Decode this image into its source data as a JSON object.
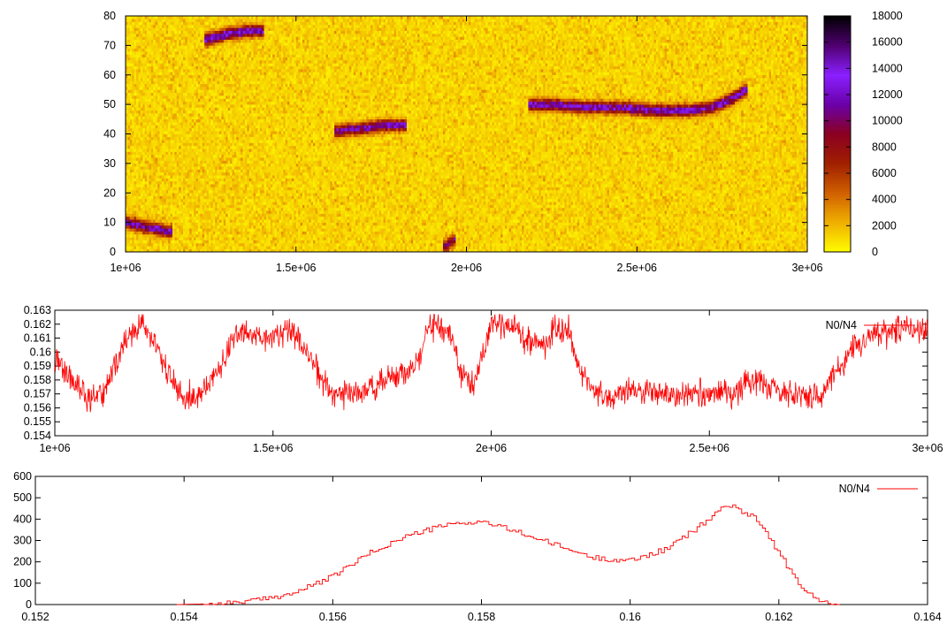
{
  "chart_data": [
    {
      "type": "heatmap",
      "title": "",
      "xlabel": "",
      "ylabel": "",
      "xlim": [
        1000000,
        3000000
      ],
      "ylim": [
        0,
        80
      ],
      "x_ticks": [
        "1e+06",
        "1.5e+06",
        "2e+06",
        "2.5e+06",
        "3e+06"
      ],
      "y_ticks": [
        "0",
        "10",
        "20",
        "30",
        "40",
        "50",
        "60",
        "70",
        "80"
      ],
      "colorbar": {
        "range": [
          0,
          18000
        ],
        "ticks": [
          "0",
          "2000",
          "4000",
          "6000",
          "8000",
          "10000",
          "12000",
          "14000",
          "16000",
          "18000"
        ],
        "palette": [
          "#ffff00",
          "#f0b000",
          "#d06000",
          "#a02000",
          "#8a0020",
          "#6a00a8",
          "#8a20ff",
          "#500070",
          "#000000"
        ]
      },
      "background_level": 1500,
      "tracks": [
        {
          "points": [
            [
              1000000,
              10
            ],
            [
              1040000,
              9
            ],
            [
              1080000,
              8
            ],
            [
              1130000,
              7
            ]
          ],
          "peak": 11500
        },
        {
          "points": [
            [
              1240000,
              72
            ],
            [
              1300000,
              74
            ],
            [
              1360000,
              75
            ],
            [
              1400000,
              75
            ]
          ],
          "peak": 12500
        },
        {
          "points": [
            [
              1620000,
              41
            ],
            [
              1700000,
              42
            ],
            [
              1760000,
              43
            ],
            [
              1820000,
              43
            ]
          ],
          "peak": 11000
        },
        {
          "points": [
            [
              1940000,
              2
            ],
            [
              1960000,
              4
            ]
          ],
          "peak": 10000
        },
        {
          "points": [
            [
              2190000,
              50
            ],
            [
              2250000,
              50
            ],
            [
              2350000,
              49
            ],
            [
              2450000,
              49
            ],
            [
              2550000,
              48
            ],
            [
              2650000,
              48
            ],
            [
              2720000,
              49
            ],
            [
              2780000,
              52
            ],
            [
              2820000,
              55
            ]
          ],
          "peak": 12000
        }
      ]
    },
    {
      "type": "line",
      "title": "",
      "xlabel": "",
      "ylabel": "",
      "xlim": [
        1000000,
        3000000
      ],
      "ylim": [
        0.154,
        0.163
      ],
      "x_ticks": [
        "1e+06",
        "1.5e+06",
        "2e+06",
        "2.5e+06",
        "3e+06"
      ],
      "y_ticks": [
        "0.154",
        "0.155",
        "0.156",
        "0.157",
        "0.158",
        "0.159",
        "0.16",
        "0.161",
        "0.162",
        "0.163"
      ],
      "series": [
        {
          "name": "N0/N4",
          "color": "#ff0000",
          "noise": 0.0009,
          "x": [
            1000000,
            1020000,
            1050000,
            1080000,
            1110000,
            1140000,
            1170000,
            1200000,
            1230000,
            1270000,
            1300000,
            1340000,
            1380000,
            1420000,
            1460000,
            1500000,
            1540000,
            1580000,
            1610000,
            1640000,
            1680000,
            1720000,
            1760000,
            1800000,
            1830000,
            1860000,
            1900000,
            1930000,
            1960000,
            1980000,
            2000000,
            2040000,
            2080000,
            2120000,
            2150000,
            2180000,
            2200000,
            2230000,
            2270000,
            2320000,
            2380000,
            2440000,
            2500000,
            2560000,
            2600000,
            2640000,
            2680000,
            2720000,
            2760000,
            2800000,
            2840000,
            2880000,
            2920000,
            2960000,
            3000000
          ],
          "y": [
            0.1595,
            0.1588,
            0.1575,
            0.1565,
            0.157,
            0.1592,
            0.1612,
            0.162,
            0.1605,
            0.1578,
            0.1565,
            0.1572,
            0.159,
            0.1615,
            0.161,
            0.1612,
            0.1615,
            0.16,
            0.158,
            0.1572,
            0.1568,
            0.1575,
            0.158,
            0.1585,
            0.159,
            0.162,
            0.1618,
            0.1585,
            0.1575,
            0.1598,
            0.162,
            0.162,
            0.161,
            0.1605,
            0.1618,
            0.1615,
            0.159,
            0.1575,
            0.1568,
            0.1572,
            0.157,
            0.1568,
            0.157,
            0.1572,
            0.158,
            0.1575,
            0.157,
            0.1568,
            0.157,
            0.159,
            0.1605,
            0.1612,
            0.1615,
            0.1618,
            0.1615
          ]
        }
      ],
      "legend": "top-right"
    },
    {
      "type": "area",
      "title": "",
      "xlabel": "",
      "ylabel": "",
      "xlim": [
        0.152,
        0.164
      ],
      "ylim": [
        0,
        600
      ],
      "x_ticks": [
        "0.152",
        "0.154",
        "0.156",
        "0.158",
        "0.16",
        "0.162",
        "0.164"
      ],
      "y_ticks": [
        "0",
        "100",
        "200",
        "300",
        "400",
        "500",
        "600"
      ],
      "bin_width": 4e-05,
      "series": [
        {
          "name": "N0/N4",
          "color": "#ff0000",
          "noise": 12,
          "x": [
            0.1539,
            0.1545,
            0.155,
            0.1555,
            0.156,
            0.1565,
            0.157,
            0.1575,
            0.158,
            0.1585,
            0.159,
            0.1595,
            0.16,
            0.1605,
            0.161,
            0.1613,
            0.1617,
            0.162,
            0.1623,
            0.1626,
            0.1628
          ],
          "y": [
            0,
            5,
            20,
            55,
            130,
            240,
            320,
            370,
            390,
            340,
            280,
            220,
            205,
            260,
            380,
            470,
            410,
            250,
            80,
            10,
            0
          ]
        }
      ],
      "legend": "top-right"
    }
  ]
}
